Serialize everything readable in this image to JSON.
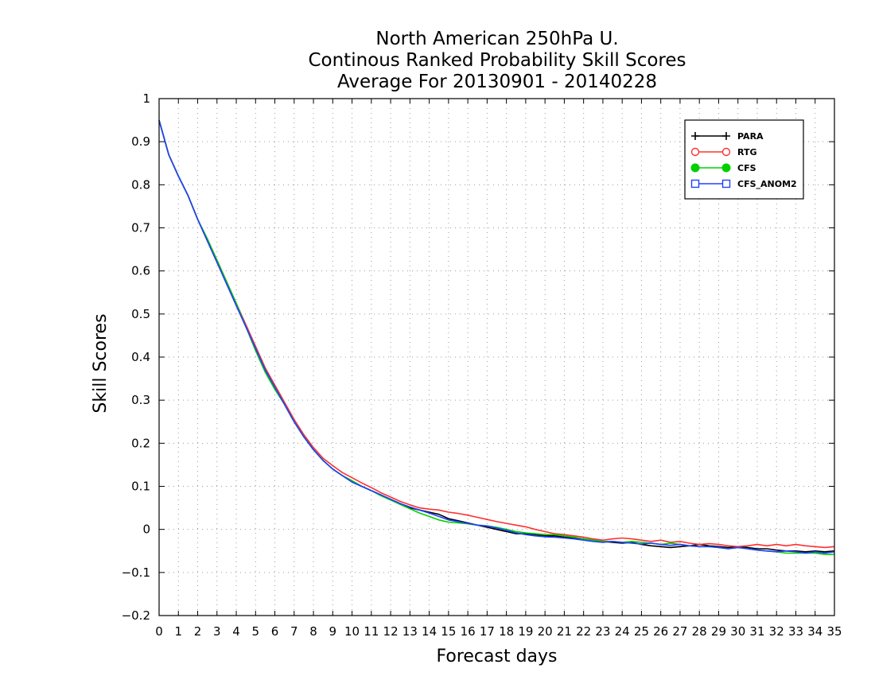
{
  "chart_data": {
    "type": "line",
    "title": [
      "North American 250hPa U.",
      "Continous Ranked Probability Skill Scores",
      "Average For 20130901 - 20140228"
    ],
    "xlabel": "Forecast days",
    "ylabel": "Skill Scores",
    "xlim": [
      0,
      35
    ],
    "ylim": [
      -0.2,
      1
    ],
    "xticks": [
      0,
      1,
      2,
      3,
      4,
      5,
      6,
      7,
      8,
      9,
      10,
      11,
      12,
      13,
      14,
      15,
      16,
      17,
      18,
      19,
      20,
      21,
      22,
      23,
      24,
      25,
      26,
      27,
      28,
      29,
      30,
      31,
      32,
      33,
      34,
      35
    ],
    "yticks": [
      -0.2,
      -0.1,
      0,
      0.1,
      0.2,
      0.3,
      0.4,
      0.5,
      0.6,
      0.7,
      0.8,
      0.9,
      1
    ],
    "ytick_labels": [
      "−0.2",
      "−0.1",
      "0",
      "0.1",
      "0.2",
      "0.3",
      "0.4",
      "0.5",
      "0.6",
      "0.7",
      "0.8",
      "0.9",
      "1"
    ],
    "grid": true,
    "legend_position": "top-right",
    "x": [
      0,
      0.5,
      1,
      1.5,
      2,
      2.5,
      3,
      3.5,
      4,
      4.5,
      5,
      5.5,
      6,
      6.5,
      7,
      7.5,
      8,
      8.5,
      9,
      9.5,
      10,
      10.5,
      11,
      11.5,
      12,
      12.5,
      13,
      13.5,
      14,
      14.5,
      15,
      15.5,
      16,
      16.5,
      17,
      17.5,
      18,
      18.5,
      19,
      19.5,
      20,
      20.5,
      21,
      21.5,
      22,
      22.5,
      23,
      23.5,
      24,
      24.5,
      25,
      25.5,
      26,
      26.5,
      27,
      27.5,
      28,
      28.5,
      29,
      29.5,
      30,
      30.5,
      31,
      31.5,
      32,
      32.5,
      33,
      33.5,
      34,
      34.5,
      35
    ],
    "series": [
      {
        "name": "PARA",
        "color": "#000000",
        "marker": "plus",
        "values": [
          0.95,
          0.87,
          0.82,
          0.775,
          0.72,
          0.67,
          0.62,
          0.57,
          0.52,
          0.47,
          0.42,
          0.37,
          0.33,
          0.29,
          0.25,
          0.215,
          0.185,
          0.16,
          0.14,
          0.125,
          0.11,
          0.1,
          0.09,
          0.08,
          0.07,
          0.06,
          0.05,
          0.045,
          0.04,
          0.035,
          0.025,
          0.02,
          0.015,
          0.01,
          0.005,
          0.0,
          -0.005,
          -0.01,
          -0.01,
          -0.012,
          -0.015,
          -0.015,
          -0.018,
          -0.02,
          -0.022,
          -0.025,
          -0.028,
          -0.03,
          -0.032,
          -0.03,
          -0.035,
          -0.038,
          -0.04,
          -0.042,
          -0.04,
          -0.038,
          -0.035,
          -0.038,
          -0.04,
          -0.042,
          -0.04,
          -0.042,
          -0.045,
          -0.045,
          -0.048,
          -0.05,
          -0.05,
          -0.052,
          -0.05,
          -0.052,
          -0.05
        ]
      },
      {
        "name": "RTG",
        "color": "#ff3030",
        "marker": "circle-open",
        "values": [
          0.95,
          0.87,
          0.82,
          0.775,
          0.72,
          0.67,
          0.625,
          0.575,
          0.525,
          0.475,
          0.425,
          0.375,
          0.335,
          0.295,
          0.255,
          0.22,
          0.19,
          0.165,
          0.148,
          0.132,
          0.12,
          0.108,
          0.097,
          0.085,
          0.075,
          0.065,
          0.057,
          0.05,
          0.047,
          0.045,
          0.04,
          0.037,
          0.033,
          0.028,
          0.023,
          0.018,
          0.014,
          0.01,
          0.006,
          0.0,
          -0.005,
          -0.01,
          -0.012,
          -0.015,
          -0.018,
          -0.022,
          -0.025,
          -0.022,
          -0.02,
          -0.022,
          -0.025,
          -0.028,
          -0.025,
          -0.03,
          -0.028,
          -0.032,
          -0.035,
          -0.033,
          -0.035,
          -0.038,
          -0.04,
          -0.038,
          -0.035,
          -0.038,
          -0.035,
          -0.038,
          -0.035,
          -0.038,
          -0.04,
          -0.042,
          -0.04
        ]
      },
      {
        "name": "CFS",
        "color": "#00d000",
        "marker": "circle-filled",
        "values": [
          0.95,
          0.87,
          0.82,
          0.775,
          0.72,
          0.675,
          0.625,
          0.575,
          0.525,
          0.47,
          0.415,
          0.365,
          0.325,
          0.29,
          0.25,
          0.215,
          0.185,
          0.16,
          0.14,
          0.125,
          0.113,
          0.1,
          0.09,
          0.078,
          0.068,
          0.058,
          0.048,
          0.038,
          0.03,
          0.022,
          0.017,
          0.015,
          0.013,
          0.01,
          0.008,
          0.005,
          0.0,
          -0.005,
          -0.008,
          -0.01,
          -0.012,
          -0.012,
          -0.015,
          -0.018,
          -0.022,
          -0.025,
          -0.028,
          -0.028,
          -0.03,
          -0.028,
          -0.03,
          -0.032,
          -0.035,
          -0.032,
          -0.035,
          -0.038,
          -0.04,
          -0.04,
          -0.042,
          -0.045,
          -0.042,
          -0.045,
          -0.048,
          -0.05,
          -0.052,
          -0.055,
          -0.055,
          -0.055,
          -0.055,
          -0.058,
          -0.058
        ]
      },
      {
        "name": "CFS_ANOM2",
        "color": "#2040ff",
        "marker": "square-open",
        "values": [
          0.95,
          0.87,
          0.82,
          0.775,
          0.72,
          0.67,
          0.62,
          0.57,
          0.52,
          0.47,
          0.42,
          0.37,
          0.33,
          0.29,
          0.25,
          0.215,
          0.185,
          0.16,
          0.14,
          0.125,
          0.11,
          0.1,
          0.09,
          0.08,
          0.07,
          0.06,
          0.052,
          0.045,
          0.038,
          0.03,
          0.022,
          0.018,
          0.014,
          0.01,
          0.008,
          0.003,
          -0.002,
          -0.008,
          -0.012,
          -0.015,
          -0.017,
          -0.018,
          -0.02,
          -0.022,
          -0.025,
          -0.028,
          -0.03,
          -0.028,
          -0.03,
          -0.032,
          -0.034,
          -0.032,
          -0.035,
          -0.037,
          -0.035,
          -0.038,
          -0.04,
          -0.04,
          -0.042,
          -0.045,
          -0.042,
          -0.045,
          -0.048,
          -0.05,
          -0.052,
          -0.05,
          -0.052,
          -0.055,
          -0.052,
          -0.055,
          -0.052
        ]
      }
    ]
  }
}
